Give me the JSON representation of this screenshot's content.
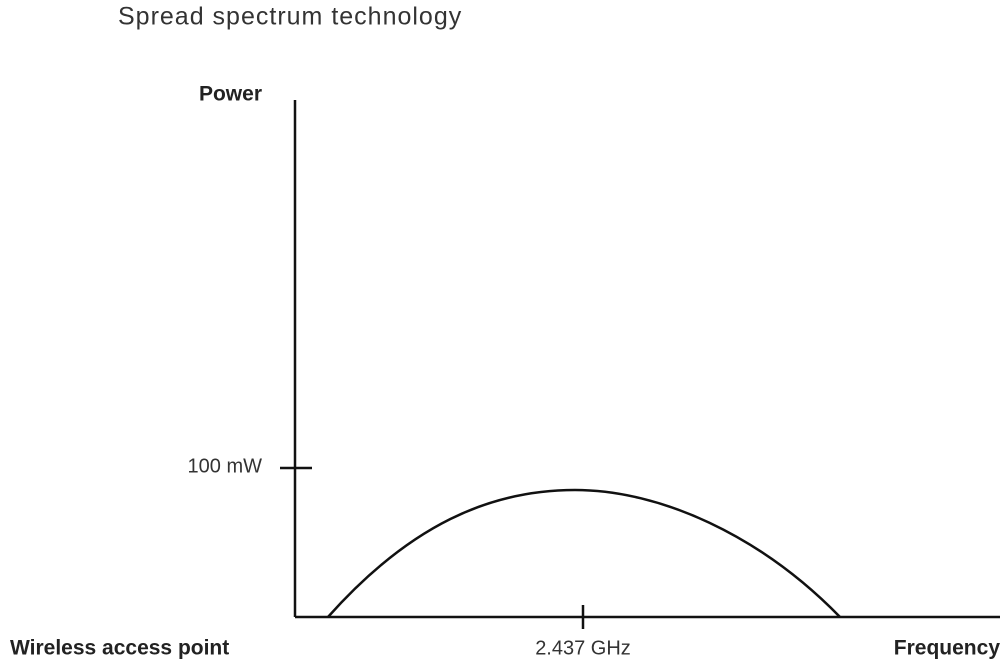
{
  "title": "Spread spectrum technology",
  "y_axis_label": "Power",
  "y_tick_label": "100 mW",
  "x_tick_label": "2.437 GHz",
  "x_axis_label": "Frequency",
  "source_label": "Wireless access point"
}
